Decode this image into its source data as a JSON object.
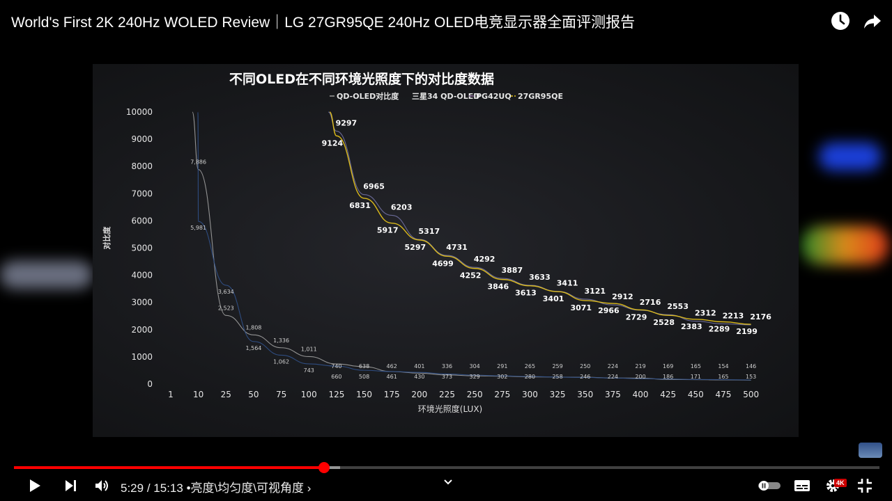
{
  "video": {
    "title": "World's First 2K 240Hz WOLED Review｜LG 27GR95QE 240Hz OLED电竞显示器全面评测报告",
    "current_time": "5:29",
    "duration": "15:13",
    "time_separator": "/",
    "chapter": "亮度\\均匀度\\可视角度",
    "chapter_prefix": "•",
    "chapter_arrow": "›",
    "quality": "4K",
    "progress_fraction": 0.36
  },
  "icons": {
    "watch_later": "clock-icon",
    "share": "share-arrow-icon",
    "play": "play-icon",
    "next": "skip-next-icon",
    "volume": "volume-icon",
    "expand": "chevron-down-icon",
    "autoplay": "autoplay-toggle-icon",
    "subtitles": "subtitles-icon",
    "settings": "gear-icon",
    "fullscreen_exit": "exit-fullscreen-icon"
  },
  "colors": {
    "accent": "#ff0000",
    "series_qd_oled": "#9a9a9a",
    "series_samsung34": "#3b5f9e",
    "series_pg42uq": "#6b7fae",
    "series_27gr95qe": "#e5c21a"
  },
  "chart_data": {
    "type": "line",
    "title": "不同OLED在不同环境光照度下的对比度数据",
    "xlabel": "环境光照度(LUX)",
    "ylabel": "对比度",
    "ylim": [
      0,
      10000
    ],
    "yticks": [
      "0",
      "1000",
      "2000",
      "3000",
      "4000",
      "5000",
      "6000",
      "7000",
      "8000",
      "9000",
      "10000"
    ],
    "categories": [
      "1",
      "10",
      "25",
      "50",
      "75",
      "100",
      "125",
      "150",
      "175",
      "200",
      "225",
      "250",
      "275",
      "300",
      "325",
      "350",
      "375",
      "400",
      "425",
      "450",
      "475",
      "500"
    ],
    "legend": [
      "QD-OLED对比度",
      "三星34 QD-OLED",
      "PG42UQ",
      "27GR95QE"
    ],
    "legend_position": "top",
    "series": [
      {
        "name": "QD-OLED对比度",
        "values": [
          null,
          7886,
          2523,
          1808,
          1336,
          1011,
          740,
          638,
          462,
          401,
          336,
          304,
          291,
          265,
          259,
          250,
          224,
          219,
          169,
          165,
          154,
          146
        ],
        "labels": [
          "",
          "7,886",
          "2,523",
          "1,808",
          "1,336",
          "1,011",
          "740",
          "638",
          "462",
          "401",
          "336",
          "304",
          "291",
          "265",
          "259",
          "250",
          "224",
          "219",
          "169",
          "165",
          "154",
          "146"
        ]
      },
      {
        "name": "三星34 QD-OLED",
        "values": [
          null,
          5981,
          3634,
          1564,
          1062,
          743,
          660,
          508,
          461,
          430,
          373,
          329,
          302,
          280,
          258,
          246,
          224,
          200,
          186,
          171,
          165,
          153
        ],
        "labels": [
          "",
          "5,981",
          "3,634",
          "1,564",
          "1,062",
          "743",
          "660",
          "508",
          "461",
          "430",
          "373",
          "329",
          "302",
          "280",
          "258",
          "246",
          "224",
          "200",
          "186",
          "171",
          "165",
          "153"
        ]
      },
      {
        "name": "PG42UQ",
        "values": [
          null,
          null,
          null,
          null,
          null,
          null,
          9297,
          6965,
          6203,
          5317,
          4731,
          4292,
          3887,
          3633,
          3411,
          3121,
          2912,
          2716,
          2553,
          2312,
          2213,
          2176
        ],
        "labels": [
          "",
          "",
          "",
          "",
          "",
          "",
          "9297",
          "6965",
          "6203",
          "5317",
          "4731",
          "4292",
          "3887",
          "3633",
          "3411",
          "3121",
          "2912",
          "2716",
          "2553",
          "2312",
          "2213",
          "2176"
        ]
      },
      {
        "name": "27GR95QE",
        "values": [
          null,
          null,
          null,
          null,
          null,
          null,
          9124,
          6831,
          5917,
          5297,
          4699,
          4252,
          3846,
          3613,
          3401,
          3071,
          2966,
          2729,
          2528,
          2383,
          2289,
          2199
        ],
        "labels": [
          "",
          "",
          "",
          "",
          "",
          "",
          "9124",
          "6831",
          "5917",
          "5297",
          "4699",
          "4252",
          "3846",
          "3613",
          "3401",
          "3071",
          "2966",
          "2729",
          "2528",
          "2383",
          "2289",
          "2199"
        ]
      }
    ]
  }
}
